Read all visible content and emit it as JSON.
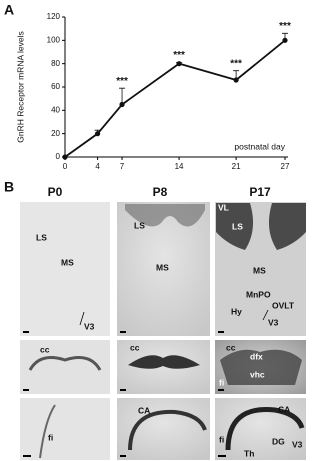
{
  "panel_labels": [
    "A",
    "B"
  ],
  "chart_data": {
    "type": "line",
    "y_label": "GnRH Receptor mRNA levels",
    "x_annotation": "postnatal day",
    "x": [
      0,
      4,
      7,
      14,
      21,
      27
    ],
    "series": [
      {
        "color": "#111111",
        "values": [
          0,
          20,
          45,
          80,
          66,
          100
        ],
        "errors": [
          0,
          3,
          14,
          1,
          8,
          6
        ]
      }
    ],
    "annotations": [
      {
        "x": 7,
        "text": "***"
      },
      {
        "x": 14,
        "text": "***"
      },
      {
        "x": 21,
        "text": "***"
      },
      {
        "x": 27,
        "text": "***"
      }
    ],
    "xlim": [
      0,
      27
    ],
    "xticks": [
      0,
      4,
      7,
      14,
      21,
      27
    ],
    "ylim": [
      0,
      120
    ],
    "yticks": [
      0,
      20,
      40,
      60,
      80,
      100,
      120
    ]
  },
  "panel_b": {
    "columns": [
      "P0",
      "P8",
      "P17"
    ],
    "images": [
      {
        "labels": [
          "LS",
          "MS",
          "V3"
        ]
      },
      {
        "labels": [
          "LS",
          "MS"
        ]
      },
      {
        "labels": [
          "VL",
          "LS",
          "MS",
          "MnPO",
          "OVLT",
          "Hy",
          "V3"
        ]
      },
      {
        "labels": [
          "cc"
        ]
      },
      {
        "labels": [
          "cc"
        ]
      },
      {
        "labels": [
          "cc",
          "dfx",
          "vhc",
          "fi"
        ]
      },
      {
        "labels": [
          "fi"
        ]
      },
      {
        "labels": [
          "CA"
        ]
      },
      {
        "labels": [
          "CA",
          "fi",
          "DG",
          "V3",
          "Th"
        ]
      }
    ]
  }
}
